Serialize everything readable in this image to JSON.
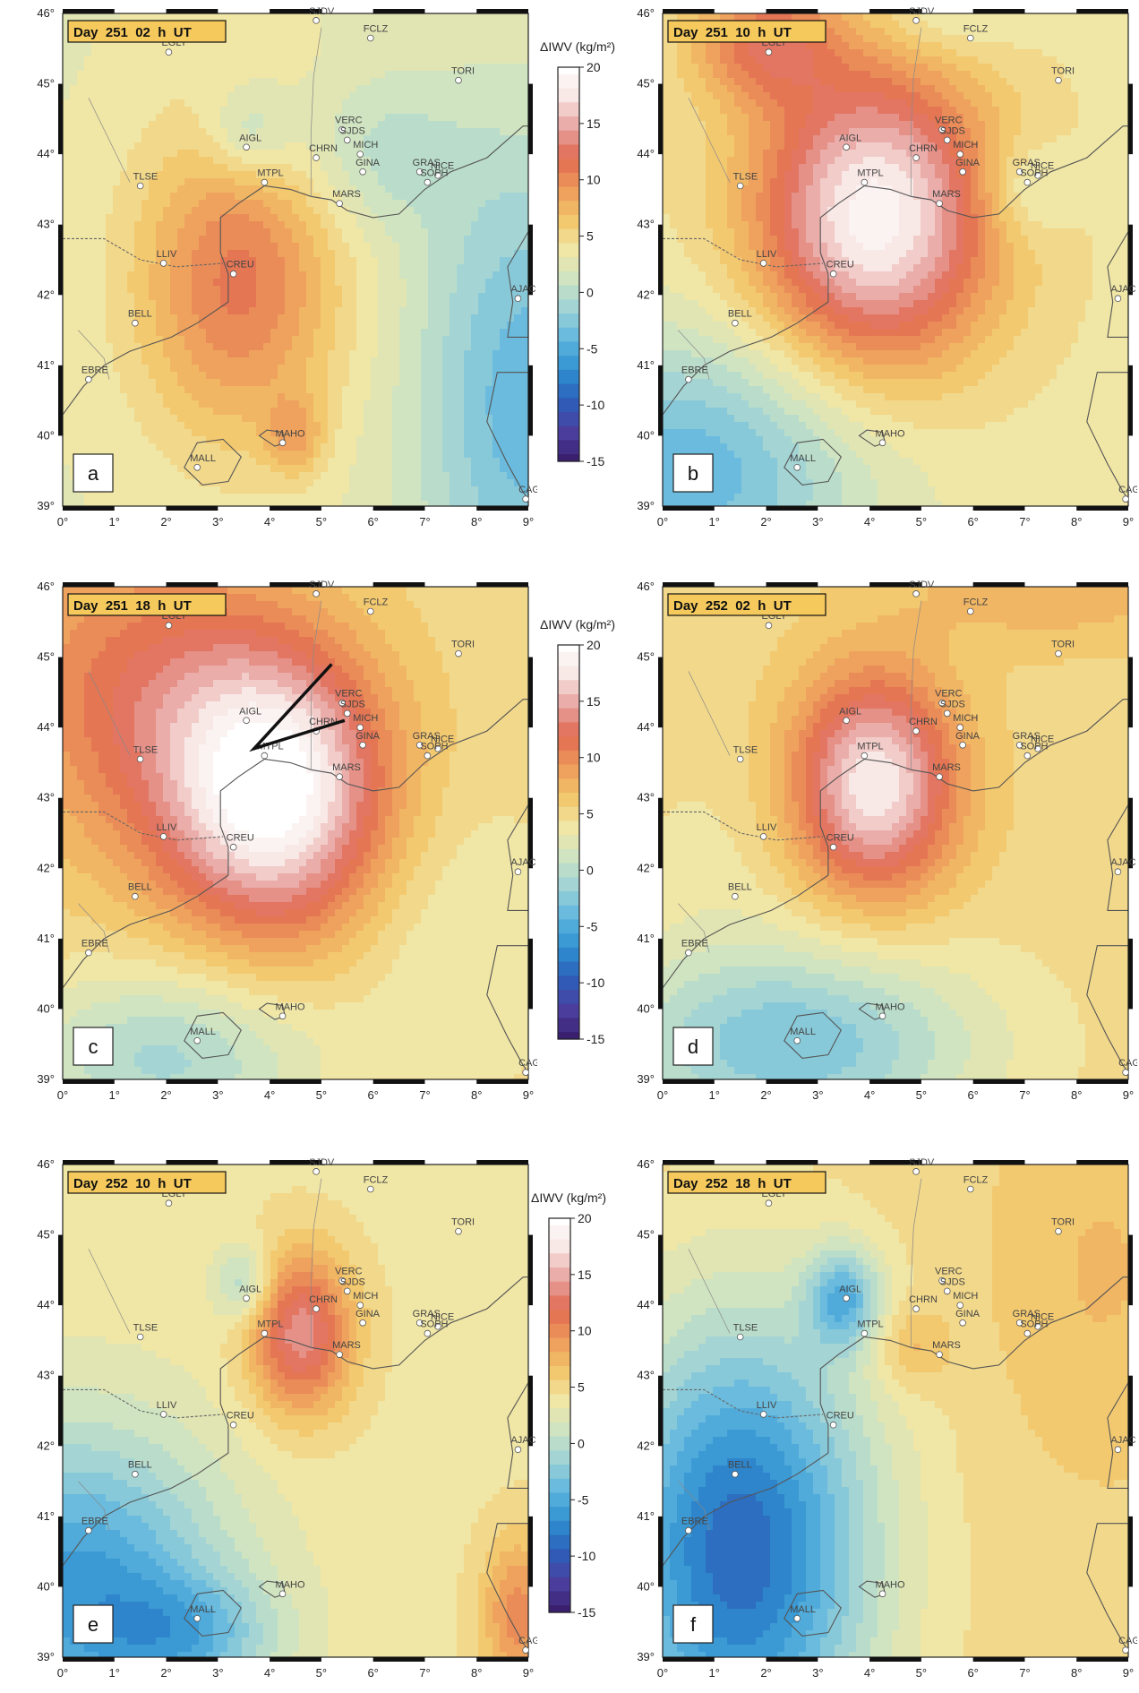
{
  "colorbar": {
    "title": "ΔIWV (kg/m²)",
    "ticks": [
      "20",
      "15",
      "10",
      "5",
      "0",
      "-5",
      "-10",
      "-15"
    ],
    "tick_values": [
      20,
      15,
      10,
      5,
      0,
      -5,
      -10,
      -15
    ],
    "colors": [
      "#3a1f6e",
      "#4b3fa0",
      "#2c5fb8",
      "#2f8fd0",
      "#5fb6de",
      "#9fd3d6",
      "#cfe4c2",
      "#f1e6a4",
      "#f3c56a",
      "#ee9a5a",
      "#e06a52",
      "#e8a3a0",
      "#f7e6e4",
      "#ffffff"
    ]
  },
  "axes": {
    "lon_ticks": [
      "0°",
      "1°",
      "2°",
      "3°",
      "4°",
      "5°",
      "6°",
      "7°",
      "8°",
      "9°"
    ],
    "lat_ticks": [
      "46°",
      "45°",
      "44°",
      "43°",
      "42°",
      "41°",
      "40°",
      "39°"
    ]
  },
  "stations": [
    {
      "name": "SJDV",
      "lon": 4.9,
      "lat": 45.9
    },
    {
      "name": "FCLZ",
      "lon": 5.95,
      "lat": 45.65
    },
    {
      "name": "EGLT",
      "lon": 2.05,
      "lat": 45.45
    },
    {
      "name": "TORI",
      "lon": 7.65,
      "lat": 45.05
    },
    {
      "name": "AIGL",
      "lon": 3.55,
      "lat": 44.1
    },
    {
      "name": "VERC",
      "lon": 5.4,
      "lat": 44.35
    },
    {
      "name": "SJDS",
      "lon": 5.5,
      "lat": 44.2
    },
    {
      "name": "MICH",
      "lon": 5.75,
      "lat": 44.0
    },
    {
      "name": "CHRN",
      "lon": 4.9,
      "lat": 43.95
    },
    {
      "name": "GINA",
      "lon": 5.8,
      "lat": 43.75
    },
    {
      "name": "GRAS",
      "lon": 6.9,
      "lat": 43.75
    },
    {
      "name": "NICE",
      "lon": 7.25,
      "lat": 43.7
    },
    {
      "name": "SOPH",
      "lon": 7.05,
      "lat": 43.6
    },
    {
      "name": "MTPL",
      "lon": 3.9,
      "lat": 43.6
    },
    {
      "name": "MARS",
      "lon": 5.35,
      "lat": 43.3
    },
    {
      "name": "TLSE",
      "lon": 1.5,
      "lat": 43.55
    },
    {
      "name": "LLIV",
      "lon": 1.95,
      "lat": 42.45
    },
    {
      "name": "CREU",
      "lon": 3.3,
      "lat": 42.3
    },
    {
      "name": "AJAC",
      "lon": 8.8,
      "lat": 41.95
    },
    {
      "name": "BELL",
      "lon": 1.4,
      "lat": 41.6
    },
    {
      "name": "EBRE",
      "lon": 0.5,
      "lat": 40.8
    },
    {
      "name": "MAHO",
      "lon": 4.25,
      "lat": 39.9
    },
    {
      "name": "MALL",
      "lon": 2.6,
      "lat": 39.55
    },
    {
      "name": "CAGL",
      "lon": 8.95,
      "lat": 39.1
    }
  ],
  "panels": [
    {
      "id": "a",
      "letter": "a",
      "title": "Day  251  02  h  UT",
      "bg": 3,
      "blobs": [
        {
          "lon": 3.4,
          "lat": 42.2,
          "amp": 8,
          "sx": 1.4,
          "sy": 1.6
        },
        {
          "lon": 4.5,
          "lat": 40.0,
          "amp": 4,
          "sx": 0.4,
          "sy": 0.4
        },
        {
          "lon": 3.6,
          "lat": 44.3,
          "amp": -4,
          "sx": 0.6,
          "sy": 0.5
        },
        {
          "lon": 6.0,
          "lat": 44.0,
          "amp": -3,
          "sx": 1.2,
          "sy": 0.8
        },
        {
          "lon": 9.0,
          "lat": 40.5,
          "amp": -7,
          "sx": 1.5,
          "sy": 2.5
        }
      ]
    },
    {
      "id": "b",
      "letter": "b",
      "title": "Day  251  10  h  UT",
      "bg": 4,
      "blobs": [
        {
          "lon": 4.1,
          "lat": 43.1,
          "amp": 15,
          "sx": 1.6,
          "sy": 1.5
        },
        {
          "lon": 2.0,
          "lat": 45.6,
          "amp": 7,
          "sx": 1.0,
          "sy": 0.6
        },
        {
          "lon": 0.5,
          "lat": 39.5,
          "amp": -8,
          "sx": 2.5,
          "sy": 1.4
        },
        {
          "lon": 7.0,
          "lat": 43.5,
          "amp": -3,
          "sx": 0.6,
          "sy": 0.5
        },
        {
          "lon": 5.5,
          "lat": 45.9,
          "amp": -2,
          "sx": 1.0,
          "sy": 0.4
        }
      ]
    },
    {
      "id": "c",
      "letter": "c",
      "title": "Day  251  18  h  UT",
      "bg": 5,
      "blobs": [
        {
          "lon": 4.1,
          "lat": 43.1,
          "amp": 15,
          "sx": 1.5,
          "sy": 1.4
        },
        {
          "lon": 1.5,
          "lat": 44.5,
          "amp": 6,
          "sx": 2.0,
          "sy": 1.6
        },
        {
          "lon": 2.0,
          "lat": 39.3,
          "amp": -6,
          "sx": 2.0,
          "sy": 0.9
        },
        {
          "lon": 7.5,
          "lat": 41.0,
          "amp": -2,
          "sx": 1.5,
          "sy": 1.5
        }
      ]
    },
    {
      "id": "d",
      "letter": "d",
      "title": "Day  252  02  h  UT",
      "bg": 5,
      "blobs": [
        {
          "lon": 4.1,
          "lat": 43.2,
          "amp": 13,
          "sx": 1.1,
          "sy": 1.1
        },
        {
          "lon": 2.5,
          "lat": 39.5,
          "amp": -8,
          "sx": 2.5,
          "sy": 1.0
        },
        {
          "lon": 7.5,
          "lat": 46.0,
          "amp": 3,
          "sx": 2.0,
          "sy": 0.6
        },
        {
          "lon": 1.0,
          "lat": 42.0,
          "amp": -1,
          "sx": 1.2,
          "sy": 1.2
        }
      ]
    },
    {
      "id": "e",
      "letter": "e",
      "title": "Day  252  10  h  UT",
      "bg": 4,
      "blobs": [
        {
          "lon": 4.6,
          "lat": 43.6,
          "amp": 10,
          "sx": 0.7,
          "sy": 0.8
        },
        {
          "lon": 3.5,
          "lat": 44.3,
          "amp": -5,
          "sx": 0.4,
          "sy": 0.4
        },
        {
          "lon": 0.3,
          "lat": 40.0,
          "amp": -10,
          "sx": 2.0,
          "sy": 1.6
        },
        {
          "lon": 2.5,
          "lat": 39.3,
          "amp": -5,
          "sx": 1.2,
          "sy": 0.6
        },
        {
          "lon": 8.8,
          "lat": 39.6,
          "amp": 6,
          "sx": 0.5,
          "sy": 0.8
        }
      ]
    },
    {
      "id": "f",
      "letter": "f",
      "title": "Day  252  18  h  UT",
      "bg": 5,
      "blobs": [
        {
          "lon": 3.5,
          "lat": 44.1,
          "amp": -8,
          "sx": 0.5,
          "sy": 0.5
        },
        {
          "lon": 1.5,
          "lat": 40.5,
          "amp": -14,
          "sx": 1.8,
          "sy": 2.3
        },
        {
          "lon": 4.8,
          "lat": 43.4,
          "amp": 3,
          "sx": 0.5,
          "sy": 0.4
        },
        {
          "lon": 8.5,
          "lat": 44.5,
          "amp": 2,
          "sx": 1.5,
          "sy": 2.0
        }
      ]
    }
  ]
}
